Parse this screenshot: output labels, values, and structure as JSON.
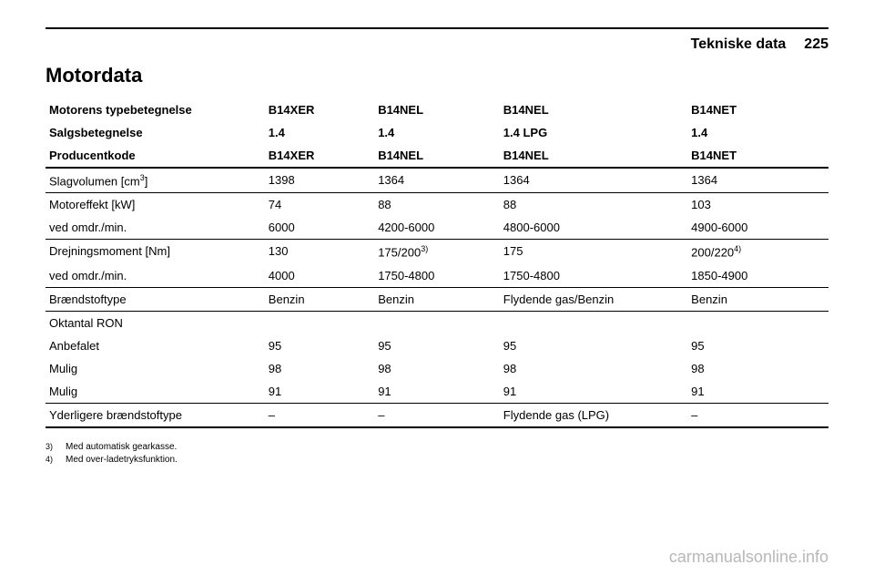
{
  "header": {
    "title": "Tekniske data",
    "page": "225"
  },
  "section_title": "Motordata",
  "table": {
    "rows": [
      {
        "type": "header",
        "label": "Motorens typebetegnelse",
        "c1": "B14XER",
        "c2": "B14NEL",
        "c3": "B14NEL",
        "c4": "B14NET"
      },
      {
        "type": "header",
        "label": "Salgsbetegnelse",
        "c1": "1.4",
        "c2": "1.4",
        "c3": "1.4 LPG",
        "c4": "1.4"
      },
      {
        "type": "header",
        "label": "Producentkode",
        "c1": "B14XER",
        "c2": "B14NEL",
        "c3": "B14NEL",
        "c4": "B14NET",
        "border": "thick"
      },
      {
        "label_html": "Slagvolumen [cm<sup>3</sup>]",
        "c1": "1398",
        "c2": "1364",
        "c3": "1364",
        "c4": "1364",
        "border": "thin"
      },
      {
        "label": "Motoreffekt [kW]",
        "c1": "74",
        "c2": "88",
        "c3": "88",
        "c4": "103"
      },
      {
        "label": "ved omdr./min.",
        "c1": "6000",
        "c2": "4200-6000",
        "c3": "4800-6000",
        "c4": "4900-6000",
        "border": "thin"
      },
      {
        "label": "Drejningsmoment [Nm]",
        "c1": "130",
        "c2_html": "175/200<sup>3)</sup>",
        "c3": "175",
        "c4_html": "200/220<sup>4)</sup>"
      },
      {
        "label": "ved omdr./min.",
        "c1": "4000",
        "c2": "1750-4800",
        "c3": "1750-4800",
        "c4": "1850-4900",
        "border": "thin"
      },
      {
        "label": "Brændstoftype",
        "c1": "Benzin",
        "c2": "Benzin",
        "c3": "Flydende gas/Benzin",
        "c4": "Benzin",
        "border": "thin"
      },
      {
        "label": "Oktantal RON",
        "c1": "",
        "c2": "",
        "c3": "",
        "c4": ""
      },
      {
        "label": "Anbefalet",
        "c1": "95",
        "c2": "95",
        "c3": "95",
        "c4": "95"
      },
      {
        "label": "Mulig",
        "c1": "98",
        "c2": "98",
        "c3": "98",
        "c4": "98"
      },
      {
        "label": "Mulig",
        "c1": "91",
        "c2": "91",
        "c3": "91",
        "c4": "91",
        "border": "thin"
      },
      {
        "label": "Yderligere brændstoftype",
        "c1": "–",
        "c2": "–",
        "c3": "Flydende gas (LPG)",
        "c4": "–",
        "border": "thick"
      }
    ]
  },
  "footnotes": [
    {
      "num": "3)",
      "text": "Med automatisk gearkasse."
    },
    {
      "num": "4)",
      "text": "Med over-ladetryksfunktion."
    }
  ],
  "watermark": "carmanualsonline.info"
}
